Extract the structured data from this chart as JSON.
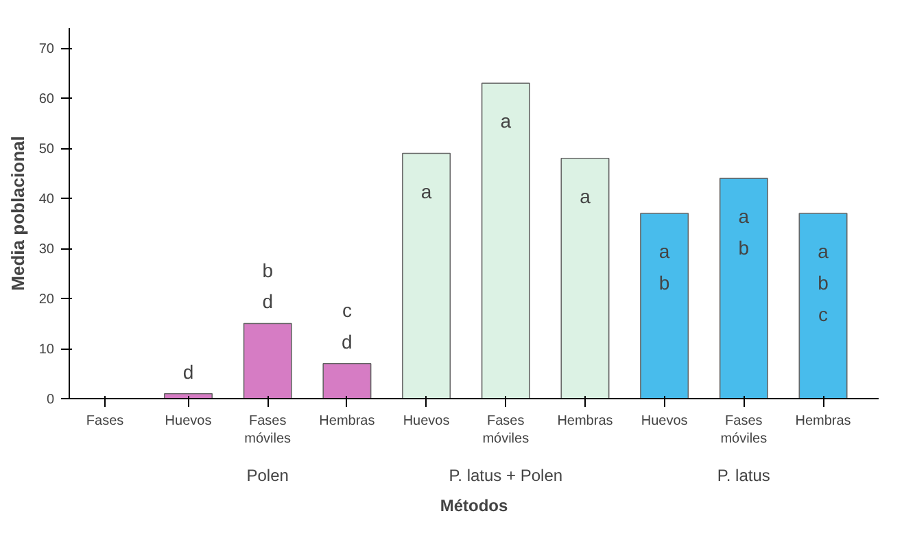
{
  "chart_data": {
    "type": "bar",
    "ylabel": "Media poblacional",
    "xlabel": "Métodos",
    "categories": [
      "Huevos",
      "Fases móviles",
      "Hembras",
      "Huevos",
      "Fases móviles",
      "Hembras",
      "Huevos",
      "Fases móviles",
      "Hembras"
    ],
    "values": [
      1,
      15,
      7,
      49,
      63,
      48,
      37,
      44,
      37
    ],
    "value_labels": [
      "d",
      "b d",
      "c d",
      "a",
      "a",
      "a",
      "a b",
      "a b",
      "a b c"
    ],
    "colors": [
      "#d67cc4",
      "#d67cc4",
      "#d67cc4",
      "#dcf2e4",
      "#dcf2e4",
      "#dcf2e4",
      "#48bcec",
      "#48bcec",
      "#48bcec"
    ],
    "ylim": [
      0,
      74
    ],
    "yticks": [
      0,
      10,
      20,
      30,
      40,
      50,
      60,
      70
    ],
    "grid": false,
    "annotations": [
      "Fases",
      "Polen",
      "P. latus + Polen",
      "P. latus"
    ]
  }
}
